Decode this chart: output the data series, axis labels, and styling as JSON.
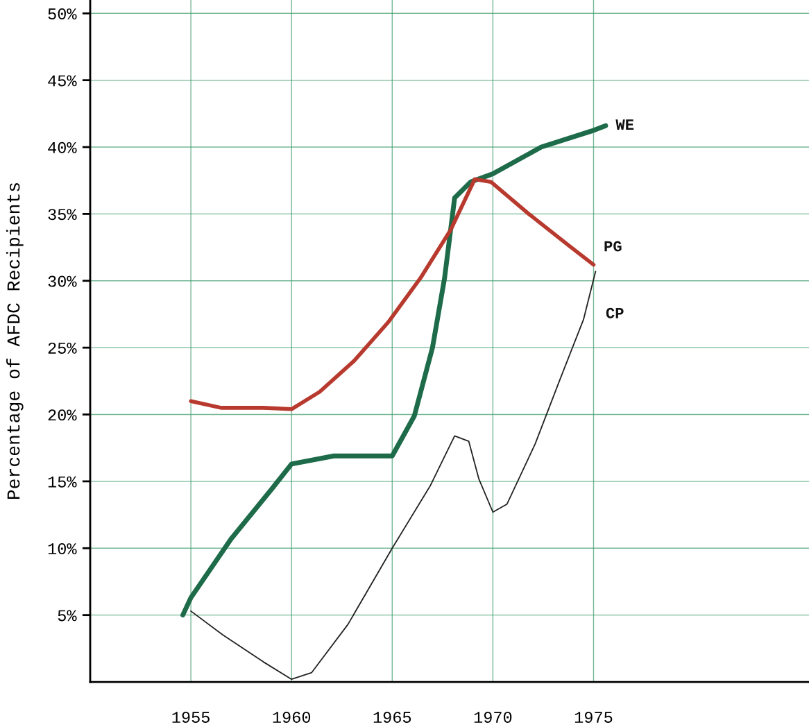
{
  "chart_data": {
    "type": "line",
    "ylabel": "Percentage of AFDC Recipients",
    "xlim": [
      1950,
      1985.7
    ],
    "ylim": [
      0,
      51
    ],
    "xticks": [
      1955,
      1960,
      1965,
      1970,
      1975
    ],
    "yticks": [
      {
        "value": 5,
        "label": "5%"
      },
      {
        "value": 10,
        "label": "10%"
      },
      {
        "value": 15,
        "label": "15%"
      },
      {
        "value": 20,
        "label": "20%"
      },
      {
        "value": 25,
        "label": "25%"
      },
      {
        "value": 30,
        "label": "30%"
      },
      {
        "value": 35,
        "label": "35%"
      },
      {
        "value": 40,
        "label": "40%"
      },
      {
        "value": 45,
        "label": "45%"
      },
      {
        "value": 50,
        "label": "50%"
      }
    ],
    "grid": true,
    "legend": false,
    "marker": "none",
    "line_style": "solid",
    "series": [
      {
        "name": "WE",
        "color": "#1e6b4a",
        "x": [
          1954.6,
          1955,
          1957,
          1959,
          1960,
          1962.1,
          1965,
          1966.1,
          1967,
          1967.6,
          1967.9,
          1968.1,
          1968.9,
          1970,
          1972.4,
          1974.9,
          1975.6
        ],
        "values": [
          5,
          6.3,
          10.7,
          14.4,
          16.3,
          16.9,
          16.9,
          19.9,
          25,
          30.2,
          33.8,
          36.2,
          37.4,
          38,
          40,
          41.2,
          41.6
        ]
      },
      {
        "name": "PG",
        "color": "#b83a2e",
        "x": [
          1955,
          1956.5,
          1958.6,
          1960,
          1961.4,
          1963.1,
          1964.8,
          1966.4,
          1967.9,
          1969.1,
          1969.9,
          1971.7,
          1973.8,
          1975
        ],
        "values": [
          21,
          20.5,
          20.5,
          20.4,
          21.7,
          24,
          26.9,
          30.2,
          33.8,
          37.6,
          37.4,
          35.1,
          32.6,
          31.2
        ]
      },
      {
        "name": "CP",
        "color": "#222222",
        "x": [
          1955,
          1956.6,
          1958.6,
          1960,
          1961,
          1962.8,
          1965,
          1966.9,
          1968.1,
          1968.8,
          1969.3,
          1970,
          1970.7,
          1972.1,
          1973.3,
          1974.5,
          1975.1
        ],
        "values": [
          5.3,
          3.5,
          1.5,
          0.2,
          0.7,
          4.3,
          10,
          14.7,
          18.4,
          18,
          15.2,
          12.7,
          13.3,
          17.8,
          22.5,
          27.1,
          30.7
        ]
      }
    ]
  }
}
